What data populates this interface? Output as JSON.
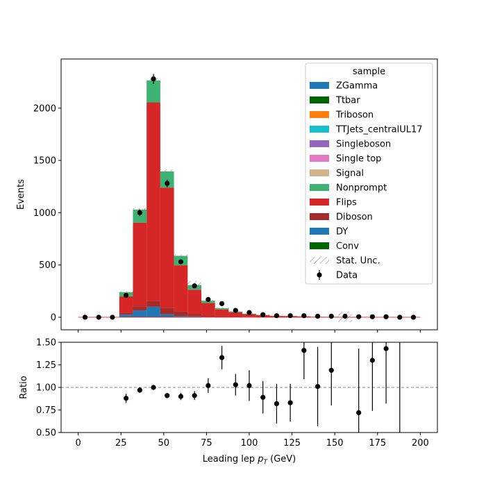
{
  "chart_data": [
    {
      "type": "bar",
      "stacked": true,
      "xlabel_prefix": "Leading lep ",
      "xlabel_var": "p",
      "xlabel_sub": "T",
      "xlabel_unit": " (GeV)",
      "ylabel": "Events",
      "xlim": [
        -10,
        210
      ],
      "ylim": [
        -120,
        2470
      ],
      "x_ticks": [
        0,
        25,
        50,
        75,
        100,
        125,
        150,
        175,
        200
      ],
      "y_ticks": [
        0,
        500,
        1000,
        1500,
        2000
      ],
      "bin_edges": [
        0,
        8,
        16,
        24,
        32,
        40,
        48,
        56,
        64,
        72,
        80,
        88,
        96,
        104,
        112,
        120,
        128,
        136,
        144,
        152,
        160,
        168,
        176,
        184,
        192,
        200
      ],
      "series": [
        {
          "name": "DY",
          "color": "#1f77b4",
          "values": [
            0,
            0,
            0,
            25,
            65,
            100,
            28,
            12,
            8,
            4,
            2,
            1,
            1,
            0,
            0,
            0,
            0,
            0,
            0,
            0,
            0,
            0,
            0,
            0,
            0
          ]
        },
        {
          "name": "Diboson",
          "color": "#a52a2a",
          "values": [
            0,
            0,
            0,
            15,
            40,
            55,
            62,
            45,
            25,
            12,
            8,
            5,
            3,
            2,
            1,
            1,
            1,
            0,
            0,
            0,
            0,
            0,
            0,
            0,
            0
          ]
        },
        {
          "name": "Flips",
          "color": "#d62728",
          "values": [
            0,
            0,
            0,
            160,
            800,
            1900,
            1150,
            440,
            230,
            120,
            65,
            42,
            25,
            17,
            11,
            9,
            6,
            4,
            3,
            2,
            2,
            1,
            1,
            1,
            1
          ]
        },
        {
          "name": "Nonprompt",
          "color": "#3cb371",
          "values": [
            0,
            0,
            0,
            40,
            125,
            210,
            155,
            90,
            45,
            22,
            12,
            7,
            5,
            3,
            2,
            2,
            2,
            1,
            1,
            1,
            1,
            1,
            0,
            0,
            0
          ]
        }
      ],
      "stat_unc": [
        0,
        0,
        0,
        10,
        15,
        22,
        18,
        14,
        40,
        10,
        8,
        6,
        5,
        4,
        3,
        3,
        3,
        3,
        3,
        50,
        3,
        2,
        2,
        2,
        2
      ],
      "data": {
        "name": "Data",
        "x": [
          4,
          12,
          20,
          28,
          36,
          44,
          52,
          60,
          68,
          76,
          84,
          92,
          100,
          108,
          116,
          124,
          132,
          140,
          148,
          156,
          164,
          172,
          180,
          188,
          196
        ],
        "y": [
          0,
          0,
          0,
          210,
          1000,
          2280,
          1280,
          530,
          300,
          170,
          130,
          65,
          45,
          25,
          15,
          15,
          15,
          10,
          10,
          10,
          5,
          5,
          5,
          0,
          0
        ],
        "yerr": [
          0,
          0,
          0,
          15,
          32,
          48,
          36,
          23,
          17,
          13,
          11,
          8,
          7,
          5,
          4,
          4,
          4,
          3,
          3,
          3,
          2,
          2,
          2,
          0,
          0
        ]
      },
      "legend": {
        "title": "sample",
        "position": "top-right",
        "entries": [
          {
            "label": "ZGamma",
            "color": "#1f77b4",
            "kind": "patch"
          },
          {
            "label": "Ttbar",
            "color": "#006400",
            "kind": "patch"
          },
          {
            "label": "Triboson",
            "color": "#ff7f0e",
            "kind": "patch"
          },
          {
            "label": "TTJets_centralUL17",
            "color": "#17becf",
            "kind": "patch"
          },
          {
            "label": "Singleboson",
            "color": "#9467bd",
            "kind": "patch"
          },
          {
            "label": "Single top",
            "color": "#e377c2",
            "kind": "patch"
          },
          {
            "label": "Signal",
            "color": "#d2b48c",
            "kind": "patch"
          },
          {
            "label": "Nonprompt",
            "color": "#3cb371",
            "kind": "patch"
          },
          {
            "label": "Flips",
            "color": "#d62728",
            "kind": "patch"
          },
          {
            "label": "Diboson",
            "color": "#a52a2a",
            "kind": "patch"
          },
          {
            "label": "DY",
            "color": "#1f77b4",
            "kind": "patch"
          },
          {
            "label": "Conv",
            "color": "#006400",
            "kind": "patch"
          },
          {
            "label": "Stat. Unc.",
            "color": "#888888",
            "kind": "hatch"
          },
          {
            "label": "Data",
            "color": "#000000",
            "kind": "errorbar"
          }
        ]
      }
    },
    {
      "type": "scatter",
      "ylabel": "Ratio",
      "ylim": [
        0.5,
        1.5
      ],
      "y_ticks": [
        0.5,
        0.75,
        1.0,
        1.25,
        1.5
      ],
      "y_tick_labels": [
        "0.50",
        "0.75",
        "1.00",
        "1.25",
        "1.50"
      ],
      "reference_line": 1.0,
      "x": [
        28,
        36,
        44,
        52,
        60,
        68,
        76,
        84,
        92,
        100,
        108,
        116,
        124,
        132,
        140,
        148,
        164,
        172,
        180,
        188
      ],
      "y": [
        0.88,
        0.97,
        1.0,
        0.91,
        0.9,
        0.91,
        1.02,
        1.33,
        1.03,
        1.02,
        0.89,
        0.82,
        0.83,
        1.41,
        1.01,
        1.19,
        0.72,
        1.3,
        1.43,
        null
      ],
      "yerr": [
        0.05,
        0.03,
        0.02,
        0.03,
        0.04,
        0.05,
        0.08,
        0.13,
        0.12,
        0.17,
        0.18,
        0.22,
        0.21,
        0.32,
        0.44,
        0.39,
        0.71,
        0.56,
        0.61,
        null
      ],
      "yerr_lines": [
        {
          "x": 188,
          "y1": 0.5,
          "y2": 1.5
        }
      ]
    }
  ]
}
